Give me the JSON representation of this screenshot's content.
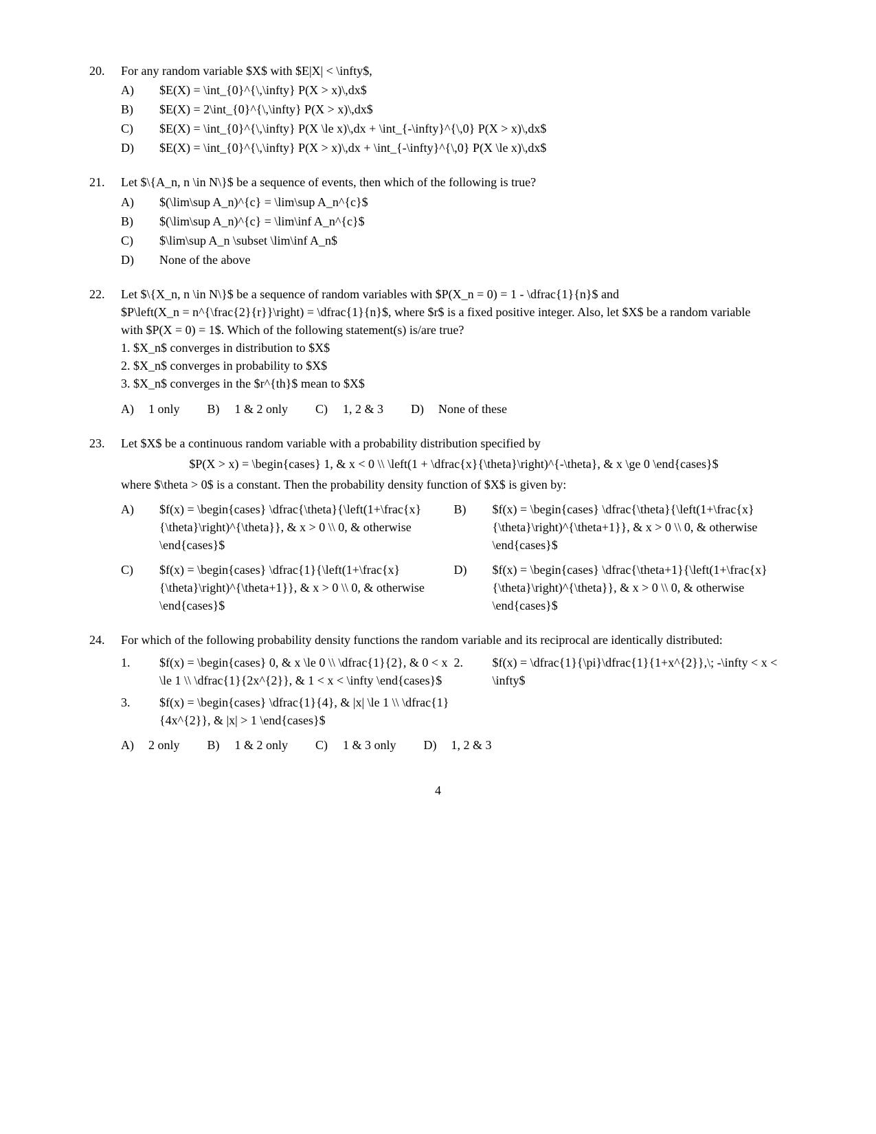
{
  "page_number": "4",
  "questions": [
    {
      "num": "20.",
      "stem": "For any random variable $X$ with $E|X| < \\infty$,",
      "options": [
        {
          "label": "A)",
          "text": "$E(X) = \\int_{0}^{\\,\\infty} P(X > x)\\,dx$"
        },
        {
          "label": "B)",
          "text": "$E(X) = 2\\int_{0}^{\\,\\infty} P(X > x)\\,dx$"
        },
        {
          "label": "C)",
          "text": "$E(X) = \\int_{0}^{\\,\\infty} P(X \\le x)\\,dx + \\int_{-\\infty}^{\\,0} P(X > x)\\,dx$"
        },
        {
          "label": "D)",
          "text": "$E(X) = \\int_{0}^{\\,\\infty} P(X > x)\\,dx + \\int_{-\\infty}^{\\,0} P(X \\le x)\\,dx$"
        }
      ]
    },
    {
      "num": "21.",
      "stem": "Let $\\{A_n, n \\in N\\}$ be a sequence of events, then which of the following is true?",
      "options": [
        {
          "label": "A)",
          "text": "$(\\lim\\sup A_n)^{c} = \\lim\\sup A_n^{c}$"
        },
        {
          "label": "B)",
          "text": "$(\\lim\\sup A_n)^{c} = \\lim\\inf A_n^{c}$"
        },
        {
          "label": "C)",
          "text": "$\\lim\\sup A_n \\subset \\lim\\inf A_n$"
        },
        {
          "label": "D)",
          "text": "None of the above"
        }
      ]
    },
    {
      "num": "22.",
      "stem_lines": [
        "Let $\\{X_n, n \\in N\\}$ be a sequence of random variables with $P(X_n = 0) = 1 - \\dfrac{1}{n}$ and",
        "$P\\left(X_n = n^{\\frac{2}{r}}\\right) = \\dfrac{1}{n}$, where $r$ is a fixed positive integer. Also, let $X$ be a random variable",
        "with $P(X = 0) = 1$. Which of the following statement(s) is/are true?",
        "1. $X_n$ converges in distribution to $X$",
        "2. $X_n$ converges in probability to $X$",
        "3. $X_n$ converges in the $r^{th}$ mean to $X$"
      ],
      "hoptions": [
        {
          "label": "A)",
          "text": "1 only"
        },
        {
          "label": "B)",
          "text": "1 & 2 only"
        },
        {
          "label": "C)",
          "text": "1, 2 & 3"
        },
        {
          "label": "D)",
          "text": "None of these"
        }
      ]
    },
    {
      "num": "23.",
      "stem": "Let $X$ be a continuous random variable with a probability distribution specified by",
      "center_eq": "$P(X > x) = \\begin{cases} 1, & x < 0 \\\\ \\left(1 + \\dfrac{x}{\\theta}\\right)^{-\\theta}, & x \\ge 0 \\end{cases}$",
      "post_text": "where $\\theta > 0$ is a constant. Then the probability density function of $X$ is given by:",
      "opt_pairs": [
        [
          {
            "label": "A)",
            "text": "$f(x) = \\begin{cases} \\dfrac{\\theta}{\\left(1+\\frac{x}{\\theta}\\right)^{\\theta}}, & x > 0 \\\\ 0, & otherwise \\end{cases}$"
          },
          {
            "label": "B)",
            "text": "$f(x) = \\begin{cases} \\dfrac{\\theta}{\\left(1+\\frac{x}{\\theta}\\right)^{\\theta+1}}, & x > 0 \\\\ 0, & otherwise \\end{cases}$"
          }
        ],
        [
          {
            "label": "C)",
            "text": "$f(x) = \\begin{cases} \\dfrac{1}{\\left(1+\\frac{x}{\\theta}\\right)^{\\theta+1}}, & x > 0 \\\\ 0, & otherwise \\end{cases}$"
          },
          {
            "label": "D)",
            "text": "$f(x) = \\begin{cases} \\dfrac{\\theta+1}{\\left(1+\\frac{x}{\\theta}\\right)^{\\theta}}, & x > 0 \\\\ 0, & otherwise \\end{cases}$"
          }
        ]
      ]
    },
    {
      "num": "24.",
      "stem": "For which of the following probability density functions the random variable and its reciprocal are identically distributed:",
      "sub_pairs": [
        [
          {
            "label": "1.",
            "text": "$f(x) = \\begin{cases} 0, & x \\le 0 \\\\ \\dfrac{1}{2}, & 0 < x \\le 1 \\\\ \\dfrac{1}{2x^{2}}, & 1 < x < \\infty \\end{cases}$"
          },
          {
            "label": "2.",
            "text": "$f(x) = \\dfrac{1}{\\pi}\\dfrac{1}{1+x^{2}},\\; -\\infty < x < \\infty$"
          }
        ],
        [
          {
            "label": "3.",
            "text": "$f(x) = \\begin{cases} \\dfrac{1}{4}, & |x| \\le 1 \\\\ \\dfrac{1}{4x^{2}}, & |x| > 1 \\end{cases}$"
          },
          {
            "label": "",
            "text": ""
          }
        ]
      ],
      "hoptions": [
        {
          "label": "A)",
          "text": "2 only"
        },
        {
          "label": "B)",
          "text": "1 & 2 only"
        },
        {
          "label": "C)",
          "text": "1 & 3 only"
        },
        {
          "label": "D)",
          "text": "1, 2 & 3"
        }
      ]
    }
  ]
}
